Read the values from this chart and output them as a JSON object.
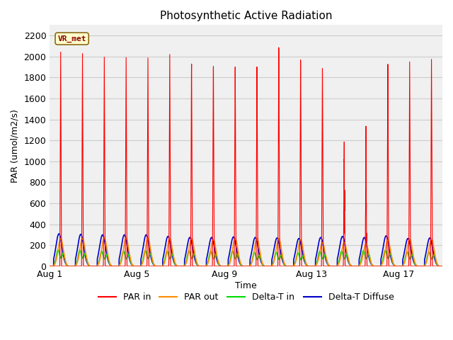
{
  "title": "Photosynthetic Active Radiation",
  "xlabel": "Time",
  "ylabel": "PAR (umol/m2/s)",
  "ylim": [
    0,
    2300
  ],
  "yticks": [
    0,
    200,
    400,
    600,
    800,
    1000,
    1200,
    1400,
    1600,
    1800,
    2000,
    2200
  ],
  "xtick_labels": [
    "Aug 1",
    "Aug 5",
    "Aug 9",
    "Aug 13",
    "Aug 17"
  ],
  "xtick_positions": [
    0,
    4,
    8,
    12,
    16
  ],
  "num_days": 18,
  "annotation_text": "VR_met",
  "figsize": [
    6.4,
    4.8
  ],
  "dpi": 100,
  "colors": {
    "PAR in": "#ff0000",
    "PAR out": "#ff8c00",
    "Delta-T in": "#00dd00",
    "Delta-T Diffuse": "#0000cc"
  },
  "day_peaks_par_in": [
    2050,
    2050,
    2030,
    2040,
    2050,
    2100,
    2020,
    2010,
    2020,
    2020,
    2200,
    2060,
    1960,
    1440,
    1480,
    1960,
    1970,
    1980
  ],
  "day_peaks_par_out": [
    265,
    265,
    270,
    270,
    268,
    265,
    265,
    255,
    265,
    265,
    265,
    255,
    225,
    225,
    215,
    250,
    260,
    260
  ],
  "day_peaks_delta_t": [
    350,
    345,
    315,
    318,
    332,
    318,
    328,
    318,
    323,
    290,
    298,
    283,
    318,
    323,
    333,
    338,
    308,
    303
  ],
  "day_peaks_diffuse": [
    310,
    305,
    300,
    300,
    300,
    285,
    275,
    275,
    280,
    275,
    270,
    265,
    275,
    285,
    275,
    290,
    265,
    270
  ],
  "bg_color": "#ffffff",
  "plot_bg_color": "#f0f0f0",
  "grid_color": "#cccccc"
}
